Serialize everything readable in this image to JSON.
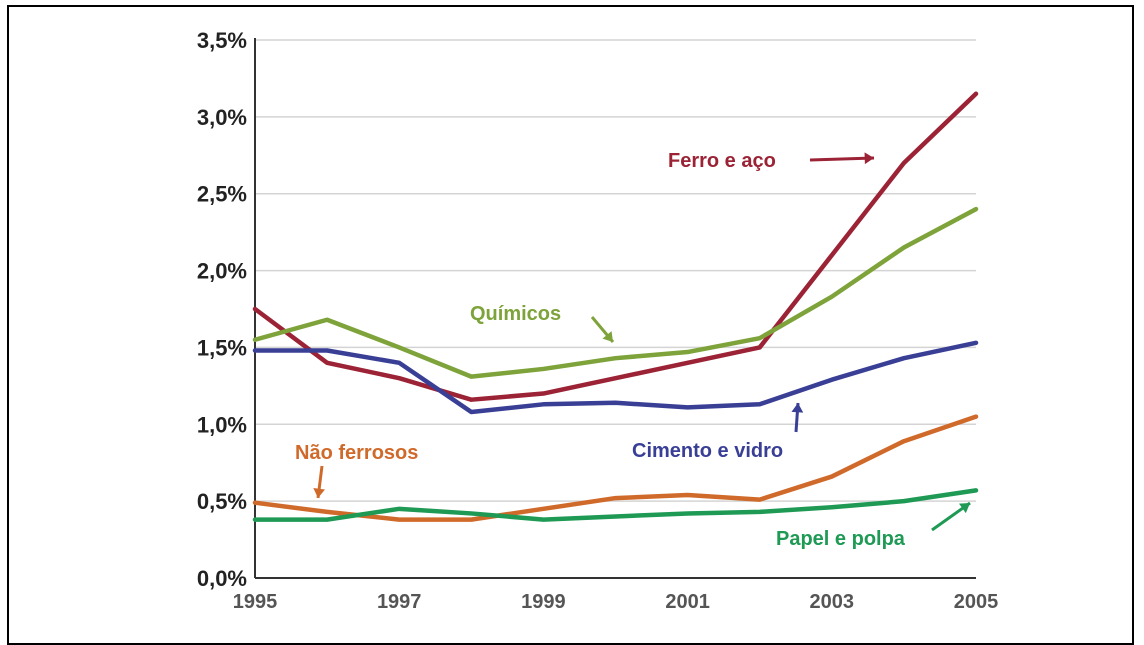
{
  "chart_data": {
    "type": "line",
    "title": "",
    "xlabel": "",
    "ylabel": "",
    "xlim": [
      1995,
      2005
    ],
    "ylim": [
      0,
      3.5
    ],
    "grid": true,
    "y_ticks": [
      "0,0%",
      "0,5%",
      "1,0%",
      "1,5%",
      "2,0%",
      "2,5%",
      "3,0%",
      "3,5%"
    ],
    "x_ticks": [
      "1995",
      "1997",
      "1999",
      "2001",
      "2003",
      "2005"
    ],
    "series": [
      {
        "name": "Ferro e aço",
        "color": "#9b2335",
        "x": [
          1995,
          1996,
          1997,
          1998,
          1999,
          2000,
          2001,
          2002,
          2003,
          2004,
          2005
        ],
        "values": [
          1.75,
          1.4,
          1.3,
          1.16,
          1.2,
          1.3,
          1.4,
          1.5,
          2.1,
          2.7,
          3.15
        ]
      },
      {
        "name": "Químicos",
        "color": "#7da33a",
        "x": [
          1995,
          1996,
          1997,
          1998,
          1999,
          2000,
          2001,
          2002,
          2003,
          2004,
          2005
        ],
        "values": [
          1.55,
          1.68,
          1.5,
          1.31,
          1.36,
          1.43,
          1.47,
          1.56,
          1.83,
          2.15,
          2.4
        ]
      },
      {
        "name": "Cimento e vidro",
        "color": "#3a3f96",
        "x": [
          1995,
          1996,
          1997,
          1998,
          1999,
          2000,
          2001,
          2002,
          2003,
          2004,
          2005
        ],
        "values": [
          1.48,
          1.48,
          1.4,
          1.08,
          1.13,
          1.14,
          1.11,
          1.13,
          1.29,
          1.43,
          1.53
        ]
      },
      {
        "name": "Não ferrosos",
        "color": "#d06a2a",
        "x": [
          1995,
          1996,
          1997,
          1998,
          1999,
          2000,
          2001,
          2002,
          2003,
          2004,
          2005
        ],
        "values": [
          0.49,
          0.43,
          0.38,
          0.38,
          0.45,
          0.52,
          0.54,
          0.51,
          0.66,
          0.89,
          1.05
        ]
      },
      {
        "name": "Papel e polpa",
        "color": "#1e9a55",
        "x": [
          1995,
          1996,
          1997,
          1998,
          1999,
          2000,
          2001,
          2002,
          2003,
          2004,
          2005
        ],
        "values": [
          0.38,
          0.38,
          0.45,
          0.42,
          0.38,
          0.4,
          0.42,
          0.43,
          0.46,
          0.5,
          0.57
        ]
      }
    ]
  }
}
